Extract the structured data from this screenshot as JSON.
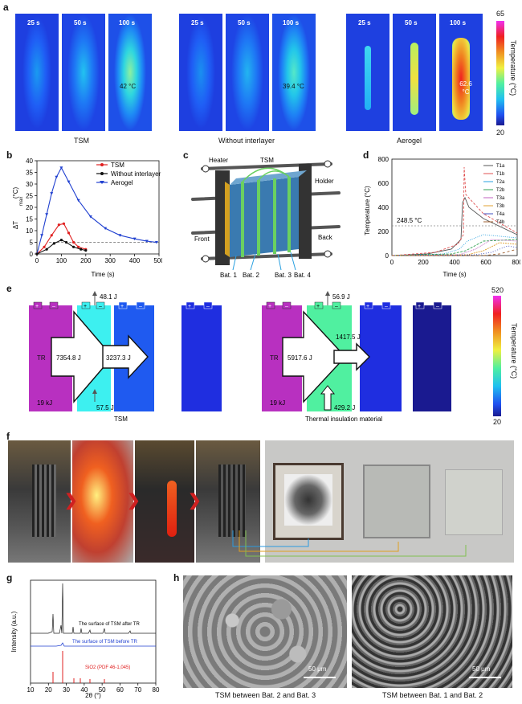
{
  "panels": {
    "a": "a",
    "b": "b",
    "c": "c",
    "d": "d",
    "e": "e",
    "f": "f",
    "g": "g",
    "h": "h"
  },
  "a": {
    "groups": [
      {
        "label": "TSM",
        "times": [
          "25 s",
          "50 s",
          "100 s"
        ],
        "spot": "42 °C"
      },
      {
        "label": "Without interlayer",
        "times": [
          "25 s",
          "50 s",
          "100 s"
        ],
        "spot": "39.4 °C"
      },
      {
        "label": "Aerogel",
        "times": [
          "25 s",
          "50 s",
          "100 s"
        ],
        "spot": "62.6 °C"
      }
    ],
    "colorbar": {
      "max": "65",
      "min": "20",
      "label": "Temperature (°C)"
    }
  },
  "b": {
    "ylabel": "ΔT",
    "ylabel_sub": "max",
    "ylabel_unit": "(°C)",
    "xlabel": "Time (s)",
    "xticks": [
      "0",
      "100",
      "200",
      "300",
      "400",
      "500"
    ],
    "yticks": [
      "0",
      "5",
      "10",
      "15",
      "20",
      "25",
      "30",
      "35",
      "40"
    ],
    "legend": [
      "TSM",
      "Without interlayer",
      "Aerogel"
    ],
    "colors": [
      "#e02020",
      "#111111",
      "#2040d0"
    ]
  },
  "c": {
    "heater": "Heater",
    "tsm": "TSM",
    "holder": "Holder",
    "front": "Front",
    "back": "Back",
    "bats": [
      "Bat. 1",
      "Bat. 2",
      "Bat. 3",
      "Bat. 4"
    ]
  },
  "d": {
    "ylabel": "Temperature (°C)",
    "xlabel": "Time (s)",
    "xticks": [
      "0",
      "200",
      "400",
      "600",
      "800"
    ],
    "yticks": [
      "0",
      "200",
      "400",
      "600",
      "800"
    ],
    "annotation": "248.5 °C",
    "legend": [
      "T1a",
      "T1b",
      "T2a",
      "T2b",
      "T3a",
      "T3b",
      "T4a",
      "T4b"
    ]
  },
  "e": {
    "left": {
      "top_energy": "48.1 J",
      "tr": "TR",
      "flow1": "7354.8 J",
      "flow2": "3237.3 J",
      "bottom_energy": "57.5 J",
      "kj": "19 kJ",
      "label": "TSM"
    },
    "right": {
      "top_energy": "56.9 J",
      "tr": "TR",
      "flow1": "5917.6 J",
      "flow2": "1417.5 J",
      "bottom_energy": "429.2 J",
      "kj": "19 kJ",
      "label": "Thermal insulation material"
    },
    "colorbar": {
      "max": "520",
      "min": "20",
      "label": "Temperature (°C)"
    }
  },
  "g": {
    "ylabel": "Intensity (a.u.)",
    "xlabel": "2θ (°)",
    "xticks": [
      "10",
      "20",
      "30",
      "40",
      "50",
      "60",
      "70",
      "80"
    ],
    "trace1": "The surface of TSM after TR",
    "trace2": "The surface of TSM before TR",
    "ref": "SiO2 (PDF 46-1,045)"
  },
  "h": {
    "left_caption": "TSM between Bat. 2 and Bat. 3",
    "right_caption": "TSM between Bat. 1 and Bat. 2",
    "scale": "50 μm"
  }
}
